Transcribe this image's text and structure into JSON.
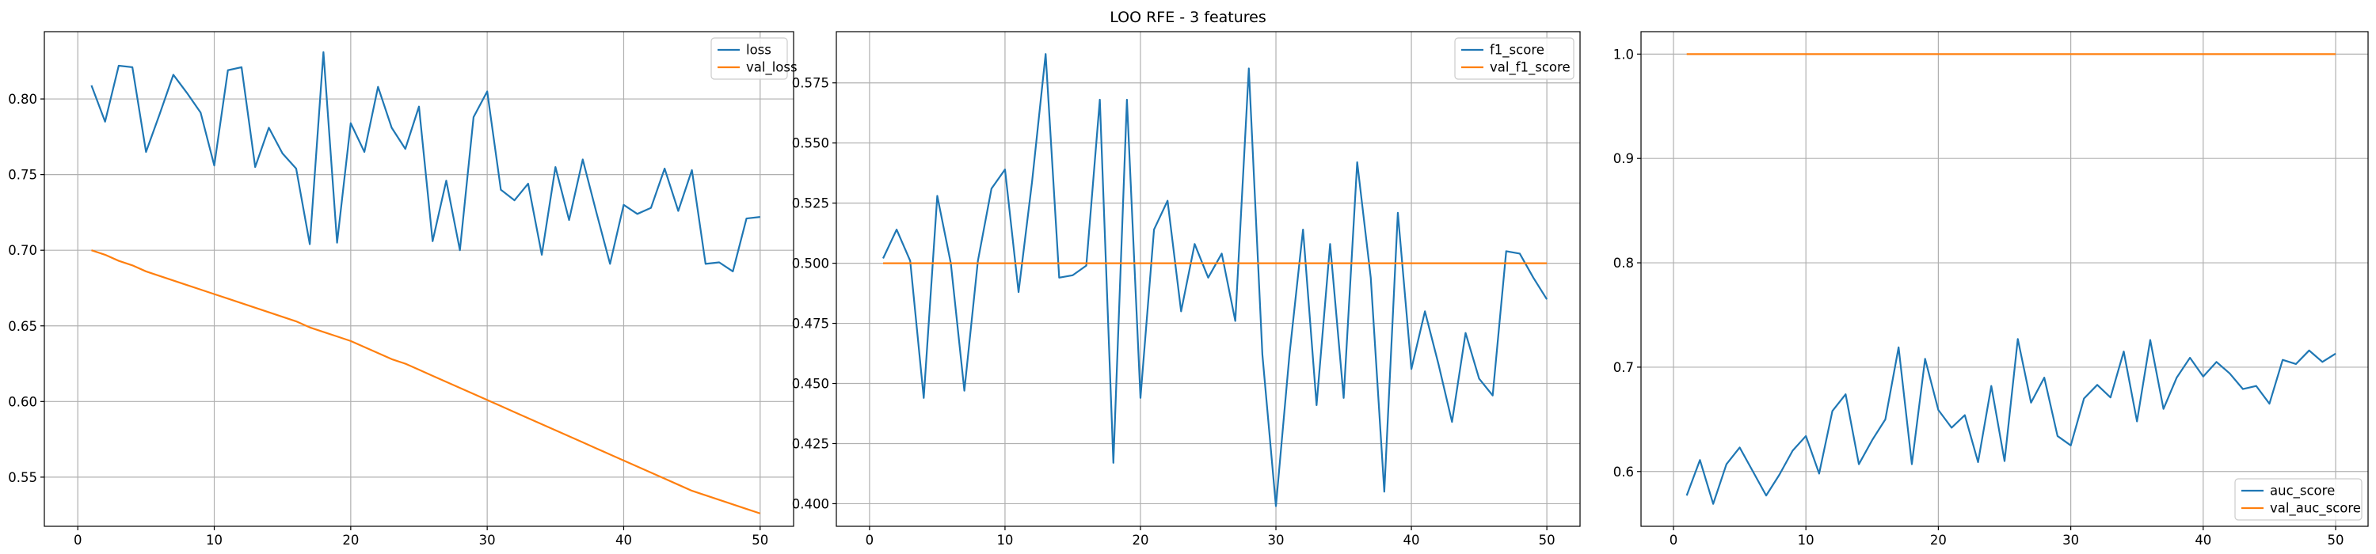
{
  "figure": {
    "title": "LOO RFE - 3 features"
  },
  "chart_data": [
    {
      "type": "line",
      "xlim": [
        -2.45,
        52.45
      ],
      "ylim": [
        0.5175,
        0.8445
      ],
      "xticks": [
        0,
        10,
        20,
        30,
        40,
        50
      ],
      "yticks": [
        0.55,
        0.6,
        0.65,
        0.7,
        0.75,
        0.8
      ],
      "grid": true,
      "legend": {
        "position": "top-right"
      },
      "x": [
        1,
        2,
        3,
        4,
        5,
        6,
        7,
        8,
        9,
        10,
        11,
        12,
        13,
        14,
        15,
        16,
        17,
        18,
        19,
        20,
        21,
        22,
        23,
        24,
        25,
        26,
        27,
        28,
        29,
        30,
        31,
        32,
        33,
        34,
        35,
        36,
        37,
        38,
        39,
        40,
        41,
        42,
        43,
        44,
        45,
        46,
        47,
        48,
        49,
        50
      ],
      "series": [
        {
          "name": "loss",
          "color": "#1f77b4",
          "values": [
            0.809,
            0.785,
            0.822,
            0.821,
            0.765,
            0.79,
            0.816,
            0.804,
            0.791,
            0.756,
            0.819,
            0.821,
            0.755,
            0.781,
            0.764,
            0.754,
            0.704,
            0.831,
            0.705,
            0.784,
            0.765,
            0.808,
            0.781,
            0.767,
            0.795,
            0.706,
            0.746,
            0.7,
            0.788,
            0.805,
            0.74,
            0.733,
            0.744,
            0.697,
            0.755,
            0.72,
            0.76,
            0.725,
            0.691,
            0.73,
            0.724,
            0.728,
            0.754,
            0.726,
            0.753,
            0.691,
            0.692,
            0.686,
            0.721,
            0.722
          ]
        },
        {
          "name": "val_loss",
          "color": "#ff7f0e",
          "values": [
            0.7,
            0.697,
            0.693,
            0.69,
            0.686,
            0.683,
            0.68,
            0.677,
            0.674,
            0.671,
            0.668,
            0.665,
            0.662,
            0.659,
            0.656,
            0.653,
            0.649,
            0.646,
            0.643,
            0.64,
            0.636,
            0.632,
            0.628,
            0.625,
            0.621,
            0.617,
            0.613,
            0.609,
            0.605,
            0.601,
            0.597,
            0.593,
            0.589,
            0.585,
            0.581,
            0.577,
            0.573,
            0.569,
            0.565,
            0.561,
            0.557,
            0.553,
            0.549,
            0.545,
            0.541,
            0.538,
            0.535,
            0.532,
            0.529,
            0.526
          ]
        }
      ]
    },
    {
      "type": "line",
      "xlim": [
        -2.45,
        52.45
      ],
      "ylim": [
        0.3906,
        0.5963
      ],
      "xticks": [
        0,
        10,
        20,
        30,
        40,
        50
      ],
      "yticks": [
        0.4,
        0.425,
        0.45,
        0.475,
        0.5,
        0.525,
        0.55,
        0.575
      ],
      "grid": true,
      "legend": {
        "position": "top-right"
      },
      "x": [
        1,
        2,
        3,
        4,
        5,
        6,
        7,
        8,
        9,
        10,
        11,
        12,
        13,
        14,
        15,
        16,
        17,
        18,
        19,
        20,
        21,
        22,
        23,
        24,
        25,
        26,
        27,
        28,
        29,
        30,
        31,
        32,
        33,
        34,
        35,
        36,
        37,
        38,
        39,
        40,
        41,
        42,
        43,
        44,
        45,
        46,
        47,
        48,
        49,
        50
      ],
      "series": [
        {
          "name": "f1_score",
          "color": "#1f77b4",
          "values": [
            0.502,
            0.514,
            0.501,
            0.444,
            0.528,
            0.5,
            0.447,
            0.501,
            0.531,
            0.539,
            0.488,
            0.534,
            0.587,
            0.494,
            0.495,
            0.499,
            0.568,
            0.417,
            0.568,
            0.444,
            0.514,
            0.526,
            0.48,
            0.508,
            0.494,
            0.504,
            0.476,
            0.581,
            0.462,
            0.399,
            0.462,
            0.514,
            0.441,
            0.508,
            0.444,
            0.542,
            0.494,
            0.405,
            0.521,
            0.456,
            0.48,
            0.458,
            0.434,
            0.471,
            0.452,
            0.445,
            0.505,
            0.504,
            0.494,
            0.485
          ]
        },
        {
          "name": "val_f1_score",
          "color": "#ff7f0e",
          "values": [
            0.5,
            0.5,
            0.5,
            0.5,
            0.5,
            0.5,
            0.5,
            0.5,
            0.5,
            0.5,
            0.5,
            0.5,
            0.5,
            0.5,
            0.5,
            0.5,
            0.5,
            0.5,
            0.5,
            0.5,
            0.5,
            0.5,
            0.5,
            0.5,
            0.5,
            0.5,
            0.5,
            0.5,
            0.5,
            0.5,
            0.5,
            0.5,
            0.5,
            0.5,
            0.5,
            0.5,
            0.5,
            0.5,
            0.5,
            0.5,
            0.5,
            0.5,
            0.5,
            0.5,
            0.5,
            0.5,
            0.5,
            0.5,
            0.5,
            0.5
          ]
        }
      ]
    },
    {
      "type": "line",
      "xlim": [
        -2.45,
        52.45
      ],
      "ylim": [
        0.5475,
        1.0215
      ],
      "xticks": [
        0,
        10,
        20,
        30,
        40,
        50
      ],
      "yticks": [
        0.6,
        0.7,
        0.8,
        0.9,
        1.0
      ],
      "grid": true,
      "legend": {
        "position": "bottom-right"
      },
      "x": [
        1,
        2,
        3,
        4,
        5,
        6,
        7,
        8,
        9,
        10,
        11,
        12,
        13,
        14,
        15,
        16,
        17,
        18,
        19,
        20,
        21,
        22,
        23,
        24,
        25,
        26,
        27,
        28,
        29,
        30,
        31,
        32,
        33,
        34,
        35,
        36,
        37,
        38,
        39,
        40,
        41,
        42,
        43,
        44,
        45,
        46,
        47,
        48,
        49,
        50
      ],
      "series": [
        {
          "name": "auc_score",
          "color": "#1f77b4",
          "values": [
            0.577,
            0.611,
            0.569,
            0.607,
            0.623,
            0.6,
            0.577,
            0.597,
            0.62,
            0.634,
            0.598,
            0.658,
            0.674,
            0.607,
            0.63,
            0.65,
            0.719,
            0.607,
            0.708,
            0.659,
            0.642,
            0.654,
            0.609,
            0.682,
            0.61,
            0.727,
            0.666,
            0.69,
            0.634,
            0.625,
            0.67,
            0.683,
            0.671,
            0.715,
            0.648,
            0.726,
            0.66,
            0.69,
            0.709,
            0.691,
            0.705,
            0.694,
            0.679,
            0.682,
            0.665,
            0.707,
            0.703,
            0.716,
            0.705,
            0.713
          ]
        },
        {
          "name": "val_auc_score",
          "color": "#ff7f0e",
          "values": [
            1.0,
            1.0,
            1.0,
            1.0,
            1.0,
            1.0,
            1.0,
            1.0,
            1.0,
            1.0,
            1.0,
            1.0,
            1.0,
            1.0,
            1.0,
            1.0,
            1.0,
            1.0,
            1.0,
            1.0,
            1.0,
            1.0,
            1.0,
            1.0,
            1.0,
            1.0,
            1.0,
            1.0,
            1.0,
            1.0,
            1.0,
            1.0,
            1.0,
            1.0,
            1.0,
            1.0,
            1.0,
            1.0,
            1.0,
            1.0,
            1.0,
            1.0,
            1.0,
            1.0,
            1.0,
            1.0,
            1.0,
            1.0,
            1.0,
            1.0
          ]
        }
      ]
    }
  ]
}
